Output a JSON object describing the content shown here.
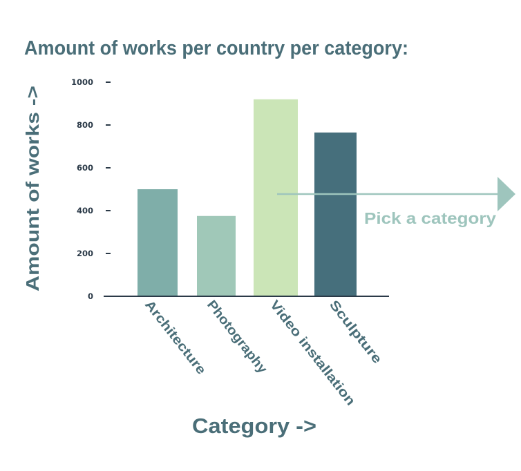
{
  "chart_data": {
    "type": "bar",
    "title": "Amount of works per country per category:",
    "xlabel": "Category ->",
    "ylabel": "Amount of works ->",
    "categories": [
      "Architecture",
      "Photography",
      "Video installation",
      "Sculpture"
    ],
    "values": [
      500,
      375,
      920,
      765
    ],
    "ylim": [
      0,
      1000
    ],
    "yticks": [
      0,
      200,
      400,
      600,
      800,
      1000
    ],
    "grid": false,
    "annotation": {
      "text": "Pick a category",
      "type": "arrow-right"
    },
    "colors": {
      "bars": [
        "#7faea9",
        "#a0c8b8",
        "#cbe5b7",
        "#466f7c"
      ],
      "title": "#4a6e78",
      "axis": "#2b3a48",
      "tick_text": "#2b3a48",
      "annotation": "#9ec5bd"
    }
  }
}
